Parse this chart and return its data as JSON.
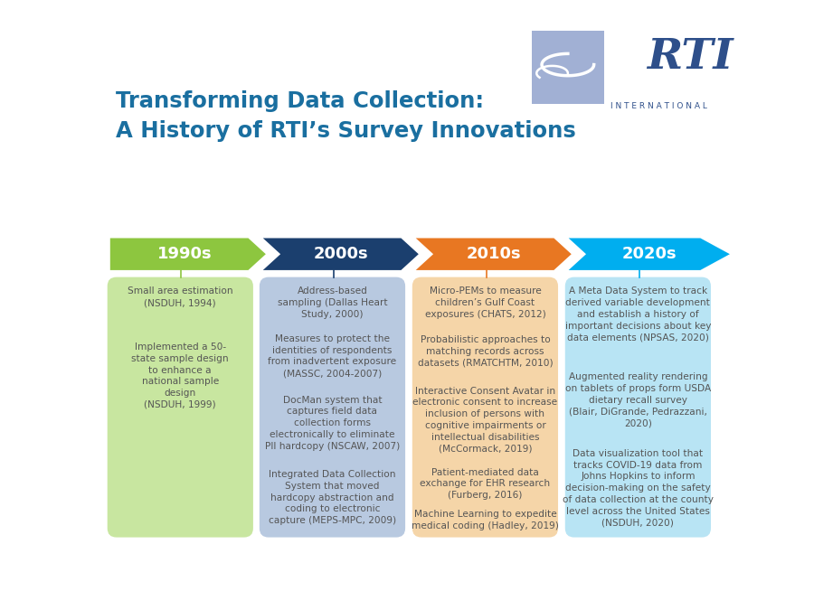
{
  "title_line1": "Transforming Data Collection:",
  "title_line2": "A History of RTI’s Survey Innovations",
  "title_color": "#1a6fa0",
  "background_color": "#ffffff",
  "arrow_colors": [
    "#8dc63f",
    "#1b3f6e",
    "#e87722",
    "#00aeef"
  ],
  "arrow_labels": [
    "1990s",
    "2000s",
    "2010s",
    "2020s"
  ],
  "arrow_label_color": "#ffffff",
  "box_colors": [
    "#c8e6a0",
    "#b8c9e0",
    "#f5d5a8",
    "#b8e4f4"
  ],
  "box_text_color": "#555555",
  "line_colors": [
    "#8dc63f",
    "#1b3f6e",
    "#e87722",
    "#00aeef"
  ],
  "logo_color": "#2e4f8a",
  "logo_light_color": "#7a8fc2",
  "col0_items": [
    {
      "text": "Small area estimation\n",
      "italic": ""
    },
    {
      "text": "",
      "italic": "(NSDUH, 1994)"
    },
    {
      "text": "\nImplemented a 50-\nstate sample design\nto enhance a\nnational sample\ndesign\n",
      "italic": ""
    },
    {
      "text": "",
      "italic": "(NSDUH, 1999)"
    }
  ],
  "col1_items": [
    {
      "text": "Address-based\nsampling ",
      "italic": "(Dallas Heart\nStudy, 2000)"
    },
    {
      "text": "\n\nMeasures to protect the\nidentities of respondents\nfrom inadvertent exposure\n",
      "italic": "(MASSC, 2004-2007)"
    },
    {
      "text": "\n\nDocMan system that\ncaptures field data\ncollection forms\nelectronically to eliminate\nPII hardcopy ",
      "italic": "(NSCAW, 2007)"
    },
    {
      "text": "\n\nIntegrated Data Collection\nSystem that moved\nhardcopy abstraction and\ncoding to electronic\ncapture ",
      "italic": "(MEPS-MPC, 2009)"
    }
  ],
  "col2_items": [
    {
      "text": "Micro-PEMs to measure\nchildren’s Gulf Coast\nexposures ",
      "italic": "(CHATS, 2012)"
    },
    {
      "text": "\n\nProbabilistic approaches to\nmatching records across\ndatasets ",
      "italic": "(RMATCHTM, 2010)"
    },
    {
      "text": "\n\nInteractive Consent Avatar in\nelectronic consent to increase\ninclusion of persons with\ncognitive impairments or\nintellectual disabilities\n",
      "italic": "(McCormack, 2019)"
    },
    {
      "text": "\n\nPatient-mediated data\nexchange for EHR research\n",
      "italic": "(Furberg, 2016)"
    },
    {
      "text": "\n\nMachine Learning to expedite\nmedical coding ",
      "italic": "(Hadley, 2019)"
    }
  ],
  "col3_items": [
    {
      "text": "A Meta Data System to track\nderived variable development\nand establish a history of\nimportant decisions about key\ndata elements ",
      "italic": "(NPSAS, 2020)"
    },
    {
      "text": "\n\nAugmented reality rendering\non tablets of props form USDA\ndietary recall survey\n",
      "italic": "(Blair, DiGrande, Pedrazzani,\n2020)"
    },
    {
      "text": "\n\nData visualization tool that\ntracks COVID-19 data from\nJohns Hopkins to inform\ndecision-making on the safety\nof data collection at the county\nlevel across the United States\n",
      "italic": "(NSDUH, 2020)"
    }
  ]
}
